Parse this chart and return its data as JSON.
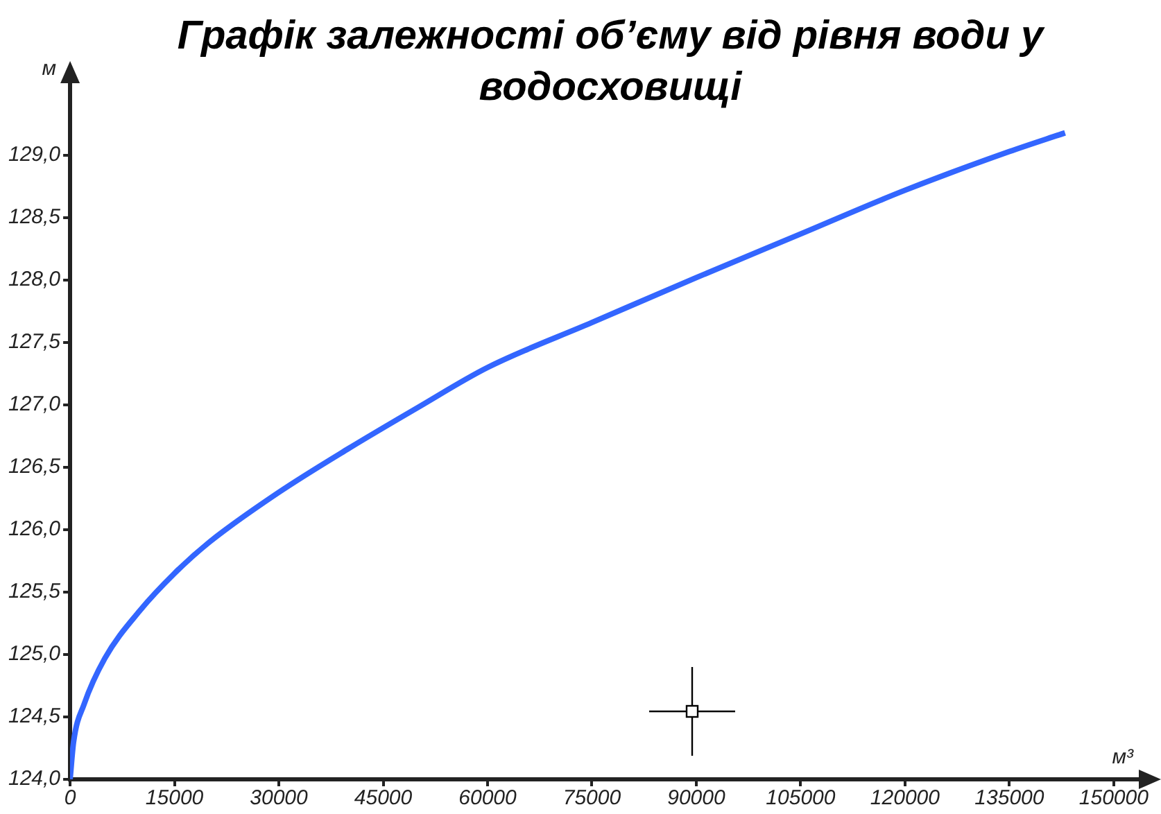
{
  "chart_data": {
    "type": "line",
    "title": "Графік залежності об’єму від рівня води у водосховищі",
    "xlabel": "м³",
    "ylabel": "м",
    "x": [
      0,
      500,
      2000,
      5000,
      10000,
      15000,
      20000,
      30000,
      40000,
      50000,
      60000,
      75000,
      90000,
      105000,
      120000,
      135000,
      143000
    ],
    "series": [
      {
        "color": "#3366ff",
        "values": [
          124.0,
          124.3,
          124.6,
          124.97,
          125.35,
          125.65,
          125.9,
          126.3,
          126.65,
          126.98,
          127.3,
          127.66,
          128.02,
          128.37,
          128.72,
          129.03,
          129.18
        ]
      }
    ],
    "xlim": [
      0,
      154000
    ],
    "xticks": [
      0,
      15000,
      30000,
      45000,
      60000,
      75000,
      90000,
      105000,
      120000,
      135000,
      150000
    ],
    "ylim": [
      124,
      129.6
    ],
    "yticks": [
      {
        "value": 124,
        "label": "124,0"
      },
      {
        "value": 124.5,
        "label": "124,5"
      },
      {
        "value": 125,
        "label": "125,0"
      },
      {
        "value": 125.5,
        "label": "125,5"
      },
      {
        "value": 126,
        "label": "126,0"
      },
      {
        "value": 126.5,
        "label": "126,5"
      },
      {
        "value": 127,
        "label": "127,0"
      },
      {
        "value": 127.5,
        "label": "127,5"
      },
      {
        "value": 128,
        "label": "128,0"
      },
      {
        "value": 128.5,
        "label": "128,5"
      },
      {
        "value": 129,
        "label": "129,0"
      }
    ],
    "grid": false,
    "legend": false,
    "marker": "none",
    "line_style": "solid"
  }
}
